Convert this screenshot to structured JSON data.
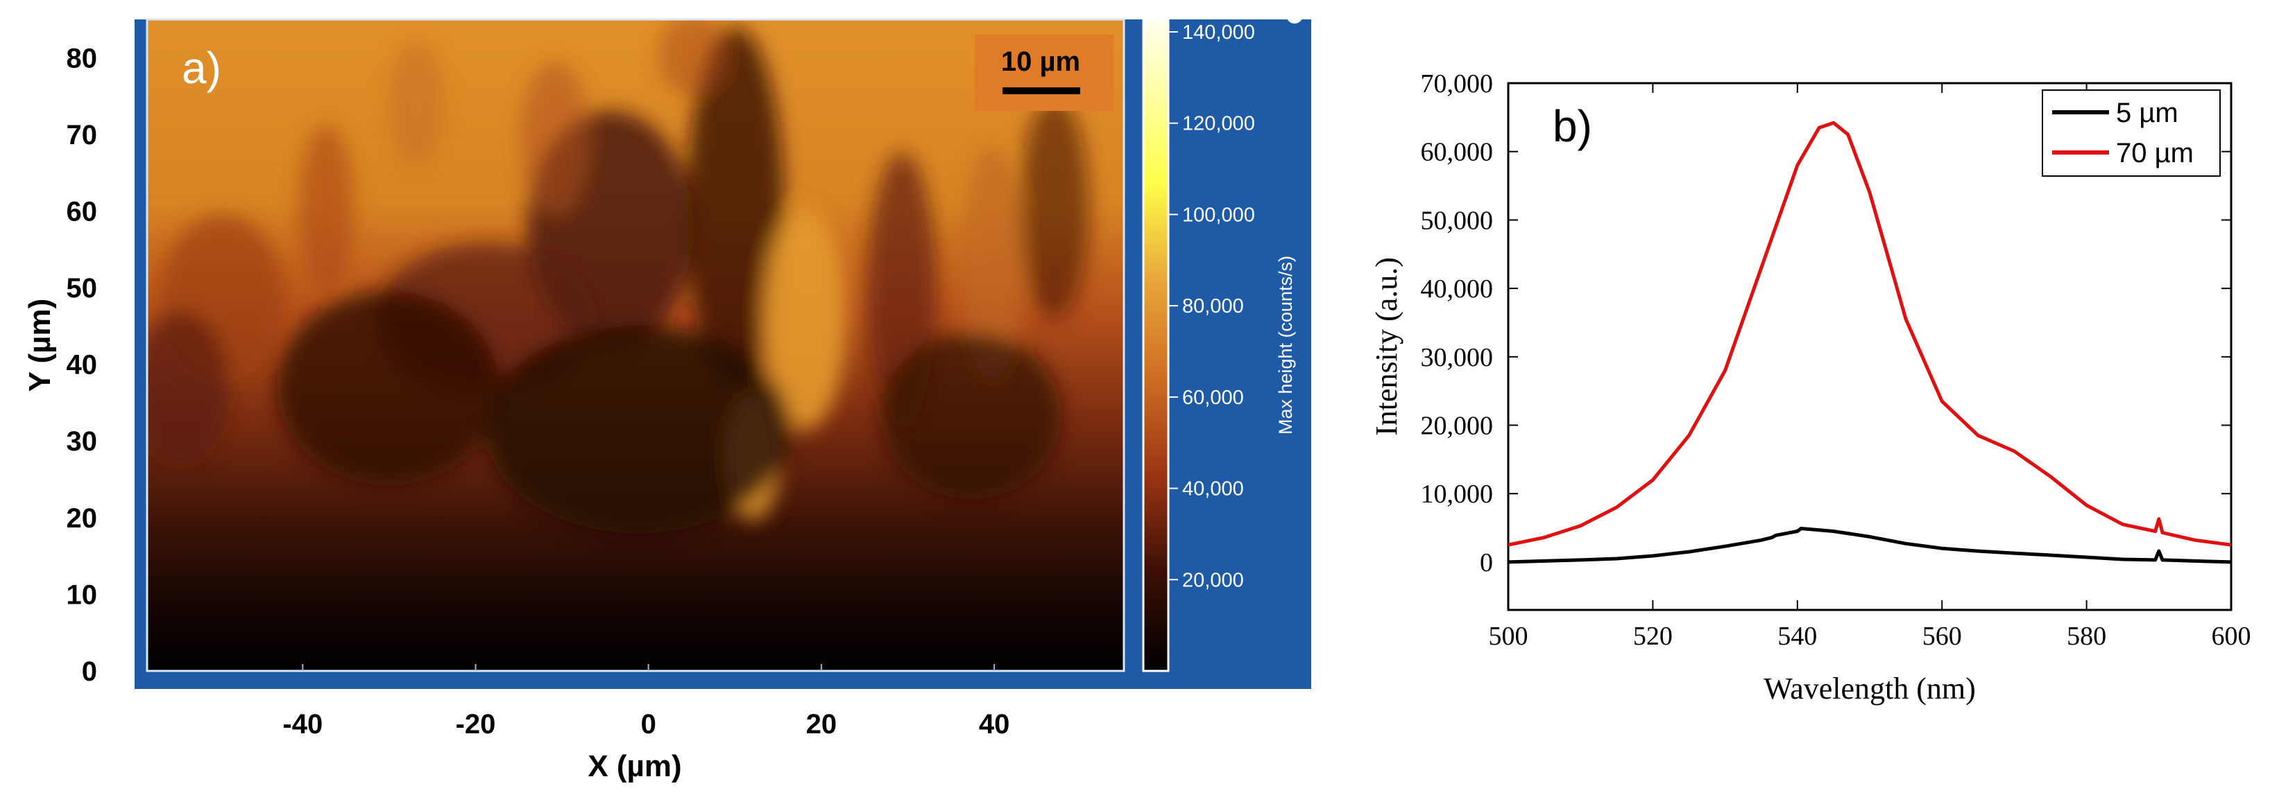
{
  "figure": {
    "panel_a_label": "a)",
    "panel_b_label": "b)",
    "scale_bar_label": "10 µm"
  },
  "chart_data": [
    {
      "type": "heatmap",
      "panel": "a)",
      "title": "",
      "xlabel": "X (µm)",
      "ylabel": "Y (µm)",
      "xlim": [
        -58,
        55
      ],
      "ylim": [
        0,
        85
      ],
      "x_ticks": [
        -40,
        -20,
        0,
        20,
        40
      ],
      "x_tick_labels": [
        "-40",
        "-20",
        "0",
        "20",
        "40"
      ],
      "y_ticks": [
        0,
        10,
        20,
        30,
        40,
        50,
        60,
        70,
        80
      ],
      "y_tick_labels": [
        "0",
        "10",
        "20",
        "30",
        "40",
        "50",
        "60",
        "70",
        "80"
      ],
      "colorbar": {
        "label": "Max height (counts/s)",
        "range": [
          0,
          140000
        ],
        "ticks": [
          20000,
          40000,
          60000,
          80000,
          100000,
          120000,
          140000
        ],
        "tick_labels": [
          "20,000",
          "40,000",
          "60,000",
          "80,000",
          "100,000",
          "120,000",
          "140,000"
        ]
      },
      "colors": {
        "frame": "#1f5aa6",
        "scale_box": "#e07b28",
        "low": "#000000",
        "mid": "#b4461b",
        "high": "#e0902a",
        "top": "#ffff70"
      },
      "description_rows_y_um": [
        5,
        15,
        25,
        35,
        45,
        55,
        65,
        75,
        83
      ],
      "row_mean_intensity": [
        3000,
        10000,
        20000,
        33000,
        45000,
        55000,
        62000,
        66000,
        68000
      ]
    },
    {
      "type": "line",
      "panel": "b)",
      "title": "",
      "xlabel": "Wavelength (nm)",
      "ylabel": "Intensity (a.u.)",
      "xlim": [
        500,
        600
      ],
      "ylim": [
        -7000,
        70000
      ],
      "x_ticks": [
        500,
        520,
        540,
        560,
        580,
        600
      ],
      "x_tick_labels": [
        "500",
        "520",
        "540",
        "560",
        "580",
        "600"
      ],
      "y_ticks": [
        0,
        10000,
        20000,
        30000,
        40000,
        50000,
        60000,
        70000
      ],
      "y_tick_labels": [
        "0",
        "10,000",
        "20,000",
        "30,000",
        "40,000",
        "50,000",
        "60,000",
        "70,000"
      ],
      "legend_position": "top-right",
      "series": [
        {
          "name": "5 µm",
          "color": "#000000",
          "x": [
            500,
            505,
            510,
            515,
            520,
            525,
            530,
            535,
            536.5,
            537,
            540,
            540.5,
            545,
            550,
            555,
            560,
            565,
            570,
            575,
            580,
            585,
            589.5,
            590,
            590.5,
            595,
            600
          ],
          "y": [
            0,
            150,
            300,
            500,
            900,
            1500,
            2300,
            3200,
            3600,
            3900,
            4500,
            4900,
            4500,
            3700,
            2700,
            2000,
            1600,
            1300,
            1000,
            700,
            400,
            300,
            1600,
            300,
            150,
            0
          ]
        },
        {
          "name": "70 µm",
          "color": "#e01010",
          "x": [
            500,
            505,
            510,
            515,
            520,
            525,
            530,
            535,
            540,
            543,
            545,
            547,
            550,
            555,
            560,
            565,
            570,
            575,
            580,
            585,
            589.5,
            590,
            590.5,
            595,
            600
          ],
          "y": [
            2500,
            3600,
            5300,
            8000,
            12000,
            18500,
            28000,
            43000,
            58000,
            63500,
            64200,
            62500,
            54000,
            35500,
            23500,
            18500,
            16200,
            12500,
            8300,
            5500,
            4500,
            6300,
            4300,
            3200,
            2500
          ]
        }
      ]
    }
  ]
}
